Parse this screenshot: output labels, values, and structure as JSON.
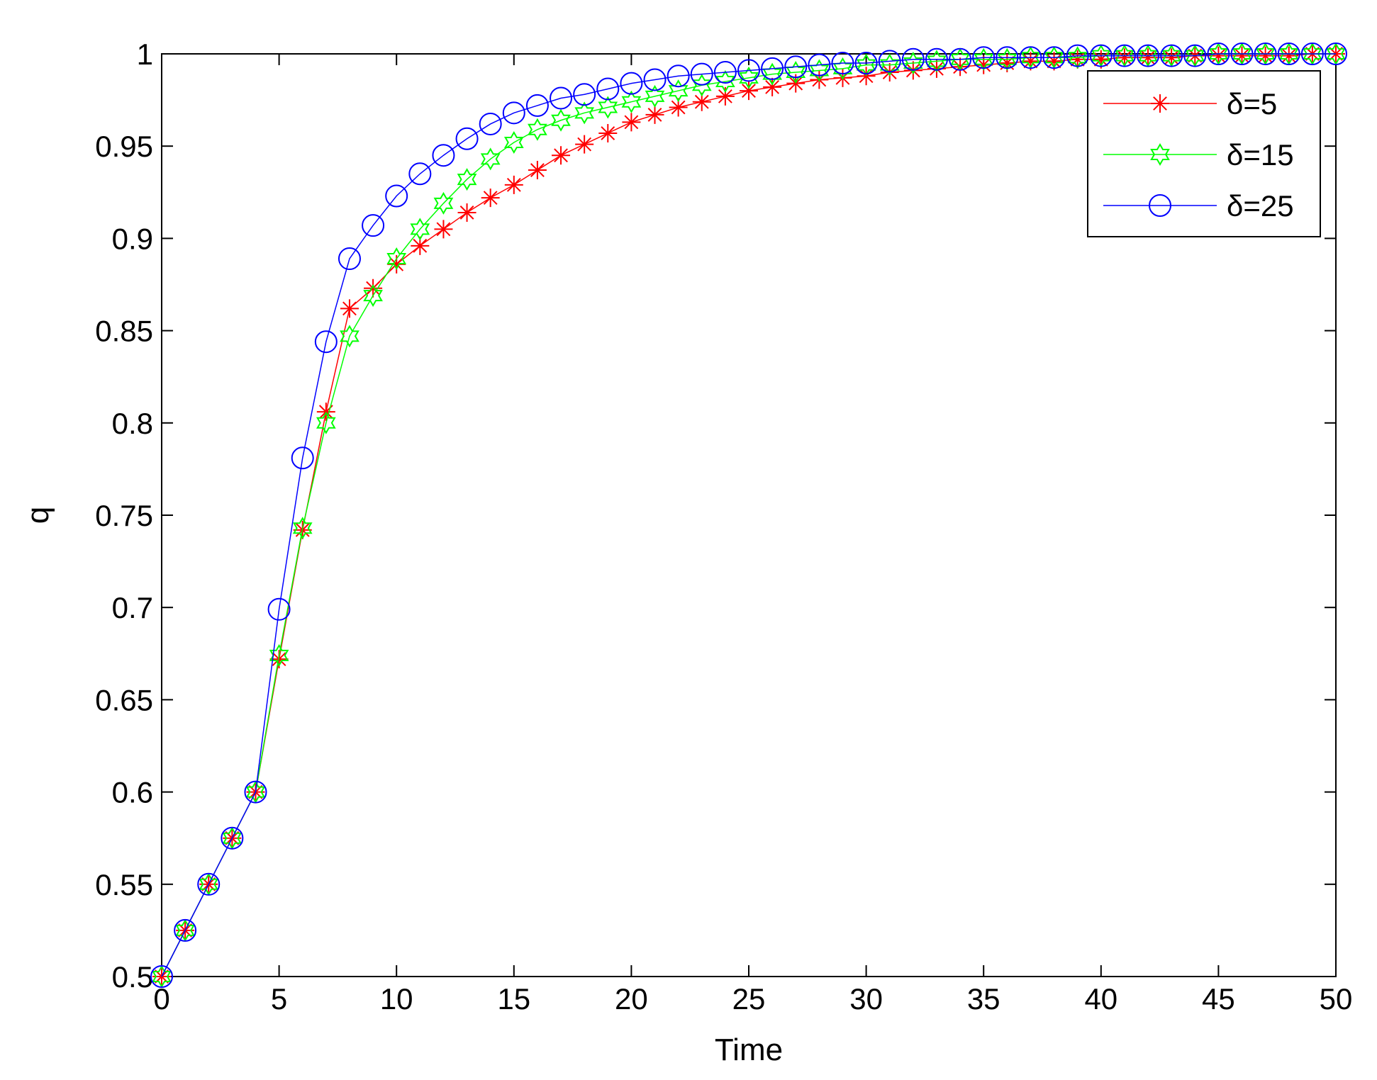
{
  "chart_data": {
    "type": "line",
    "title": "",
    "xlabel": "Time",
    "ylabel": "q",
    "xlim": [
      0,
      50
    ],
    "ylim": [
      0.5,
      1
    ],
    "xticks": [
      "0",
      "5",
      "10",
      "15",
      "20",
      "25",
      "30",
      "35",
      "40",
      "45",
      "50"
    ],
    "yticks": [
      "0.5",
      "0.55",
      "0.6",
      "0.65",
      "0.7",
      "0.75",
      "0.8",
      "0.85",
      "0.9",
      "0.95",
      "1"
    ],
    "grid": false,
    "legend_position": "top-right",
    "x": [
      0,
      1,
      2,
      3,
      4,
      5,
      6,
      7,
      8,
      9,
      10,
      11,
      12,
      13,
      14,
      15,
      16,
      17,
      18,
      19,
      20,
      21,
      22,
      23,
      24,
      25,
      26,
      27,
      28,
      29,
      30,
      31,
      32,
      33,
      34,
      35,
      36,
      37,
      38,
      39,
      40,
      41,
      42,
      43,
      44,
      45,
      46,
      47,
      48,
      49,
      50
    ],
    "series": [
      {
        "name": "δ=5",
        "color": "#ff0000",
        "marker": "asterisk",
        "values": [
          0.5,
          0.525,
          0.55,
          0.575,
          0.6,
          0.672,
          0.742,
          0.806,
          0.862,
          0.873,
          0.886,
          0.896,
          0.905,
          0.914,
          0.922,
          0.929,
          0.937,
          0.945,
          0.951,
          0.957,
          0.963,
          0.967,
          0.971,
          0.974,
          0.977,
          0.98,
          0.982,
          0.984,
          0.986,
          0.987,
          0.988,
          0.99,
          0.991,
          0.992,
          0.993,
          0.994,
          0.995,
          0.996,
          0.996,
          0.997,
          0.997,
          0.998,
          0.998,
          0.998,
          0.999,
          0.999,
          0.999,
          0.999,
          0.999,
          1.0,
          1.0
        ]
      },
      {
        "name": "δ=15",
        "color": "#00ff00",
        "marker": "hexagram",
        "values": [
          0.5,
          0.525,
          0.55,
          0.575,
          0.6,
          0.674,
          0.743,
          0.8,
          0.847,
          0.869,
          0.889,
          0.905,
          0.919,
          0.932,
          0.943,
          0.952,
          0.959,
          0.964,
          0.968,
          0.971,
          0.974,
          0.977,
          0.98,
          0.983,
          0.985,
          0.987,
          0.989,
          0.99,
          0.991,
          0.992,
          0.994,
          0.994,
          0.995,
          0.996,
          0.997,
          0.997,
          0.997,
          0.998,
          0.998,
          0.998,
          0.999,
          0.999,
          0.999,
          0.999,
          0.999,
          1.0,
          1.0,
          1.0,
          1.0,
          1.0,
          1.0
        ]
      },
      {
        "name": "δ=25",
        "color": "#0000ff",
        "marker": "circle",
        "values": [
          0.5,
          0.525,
          0.55,
          0.575,
          0.6,
          0.699,
          0.781,
          0.844,
          0.889,
          0.907,
          0.923,
          0.935,
          0.945,
          0.954,
          0.962,
          0.968,
          0.972,
          0.976,
          0.978,
          0.981,
          0.984,
          0.986,
          0.988,
          0.989,
          0.99,
          0.991,
          0.992,
          0.993,
          0.994,
          0.995,
          0.995,
          0.996,
          0.997,
          0.997,
          0.997,
          0.998,
          0.998,
          0.998,
          0.998,
          0.999,
          0.999,
          0.999,
          0.999,
          0.999,
          0.999,
          1.0,
          1.0,
          1.0,
          1.0,
          1.0,
          1.0
        ]
      }
    ]
  }
}
